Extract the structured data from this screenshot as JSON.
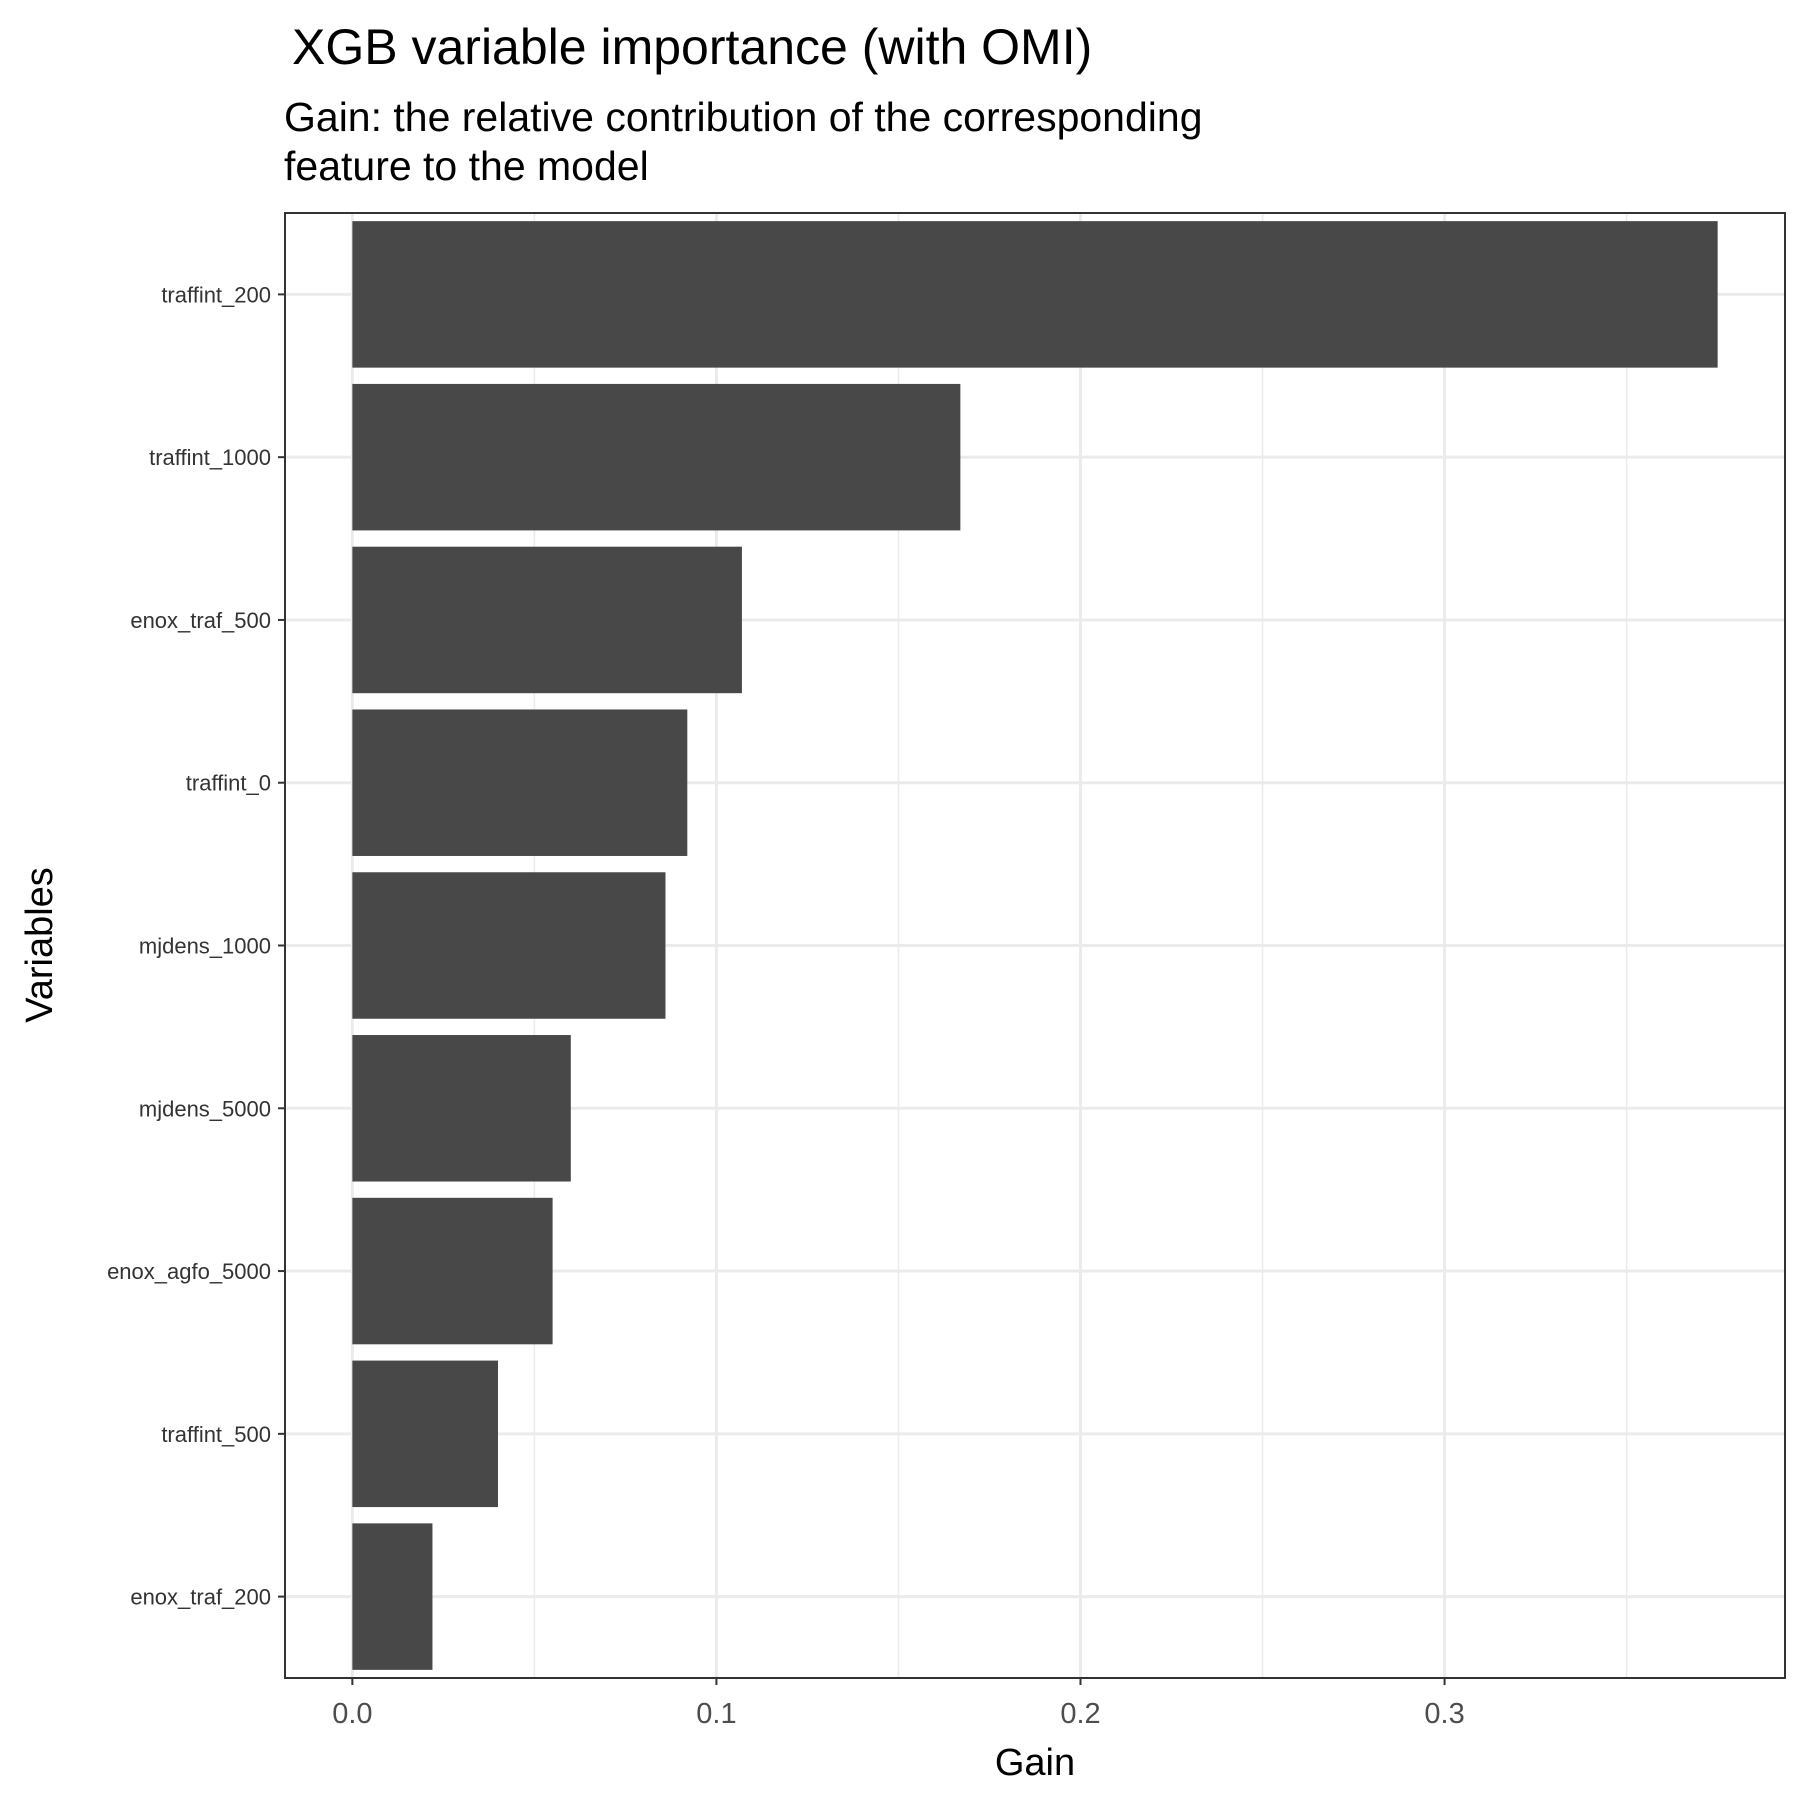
{
  "chart_data": {
    "type": "bar",
    "orientation": "horizontal",
    "title": "XGB variable importance (with OMI)",
    "subtitle_lines": [
      "Gain: the relative contribution of the corresponding",
      "feature to the model"
    ],
    "xlabel": "Gain",
    "ylabel": "Variables",
    "categories": [
      "traffint_200",
      "traffint_1000",
      "enox_traf_500",
      "traffint_0",
      "mjdens_1000",
      "mjdens_5000",
      "enox_agfo_5000",
      "traffint_500",
      "enox_traf_200"
    ],
    "values": [
      0.375,
      0.167,
      0.107,
      0.092,
      0.086,
      0.06,
      0.055,
      0.04,
      0.022
    ],
    "xlim": [
      -0.0185,
      0.3935
    ],
    "xticks": [
      0.0,
      0.1,
      0.2,
      0.3
    ],
    "xtick_labels": [
      "0.0",
      "0.1",
      "0.2",
      "0.3"
    ],
    "grid": true,
    "bar_color": "#484848",
    "grid_color": "#ebebeb",
    "panel_border_color": "#333333"
  }
}
